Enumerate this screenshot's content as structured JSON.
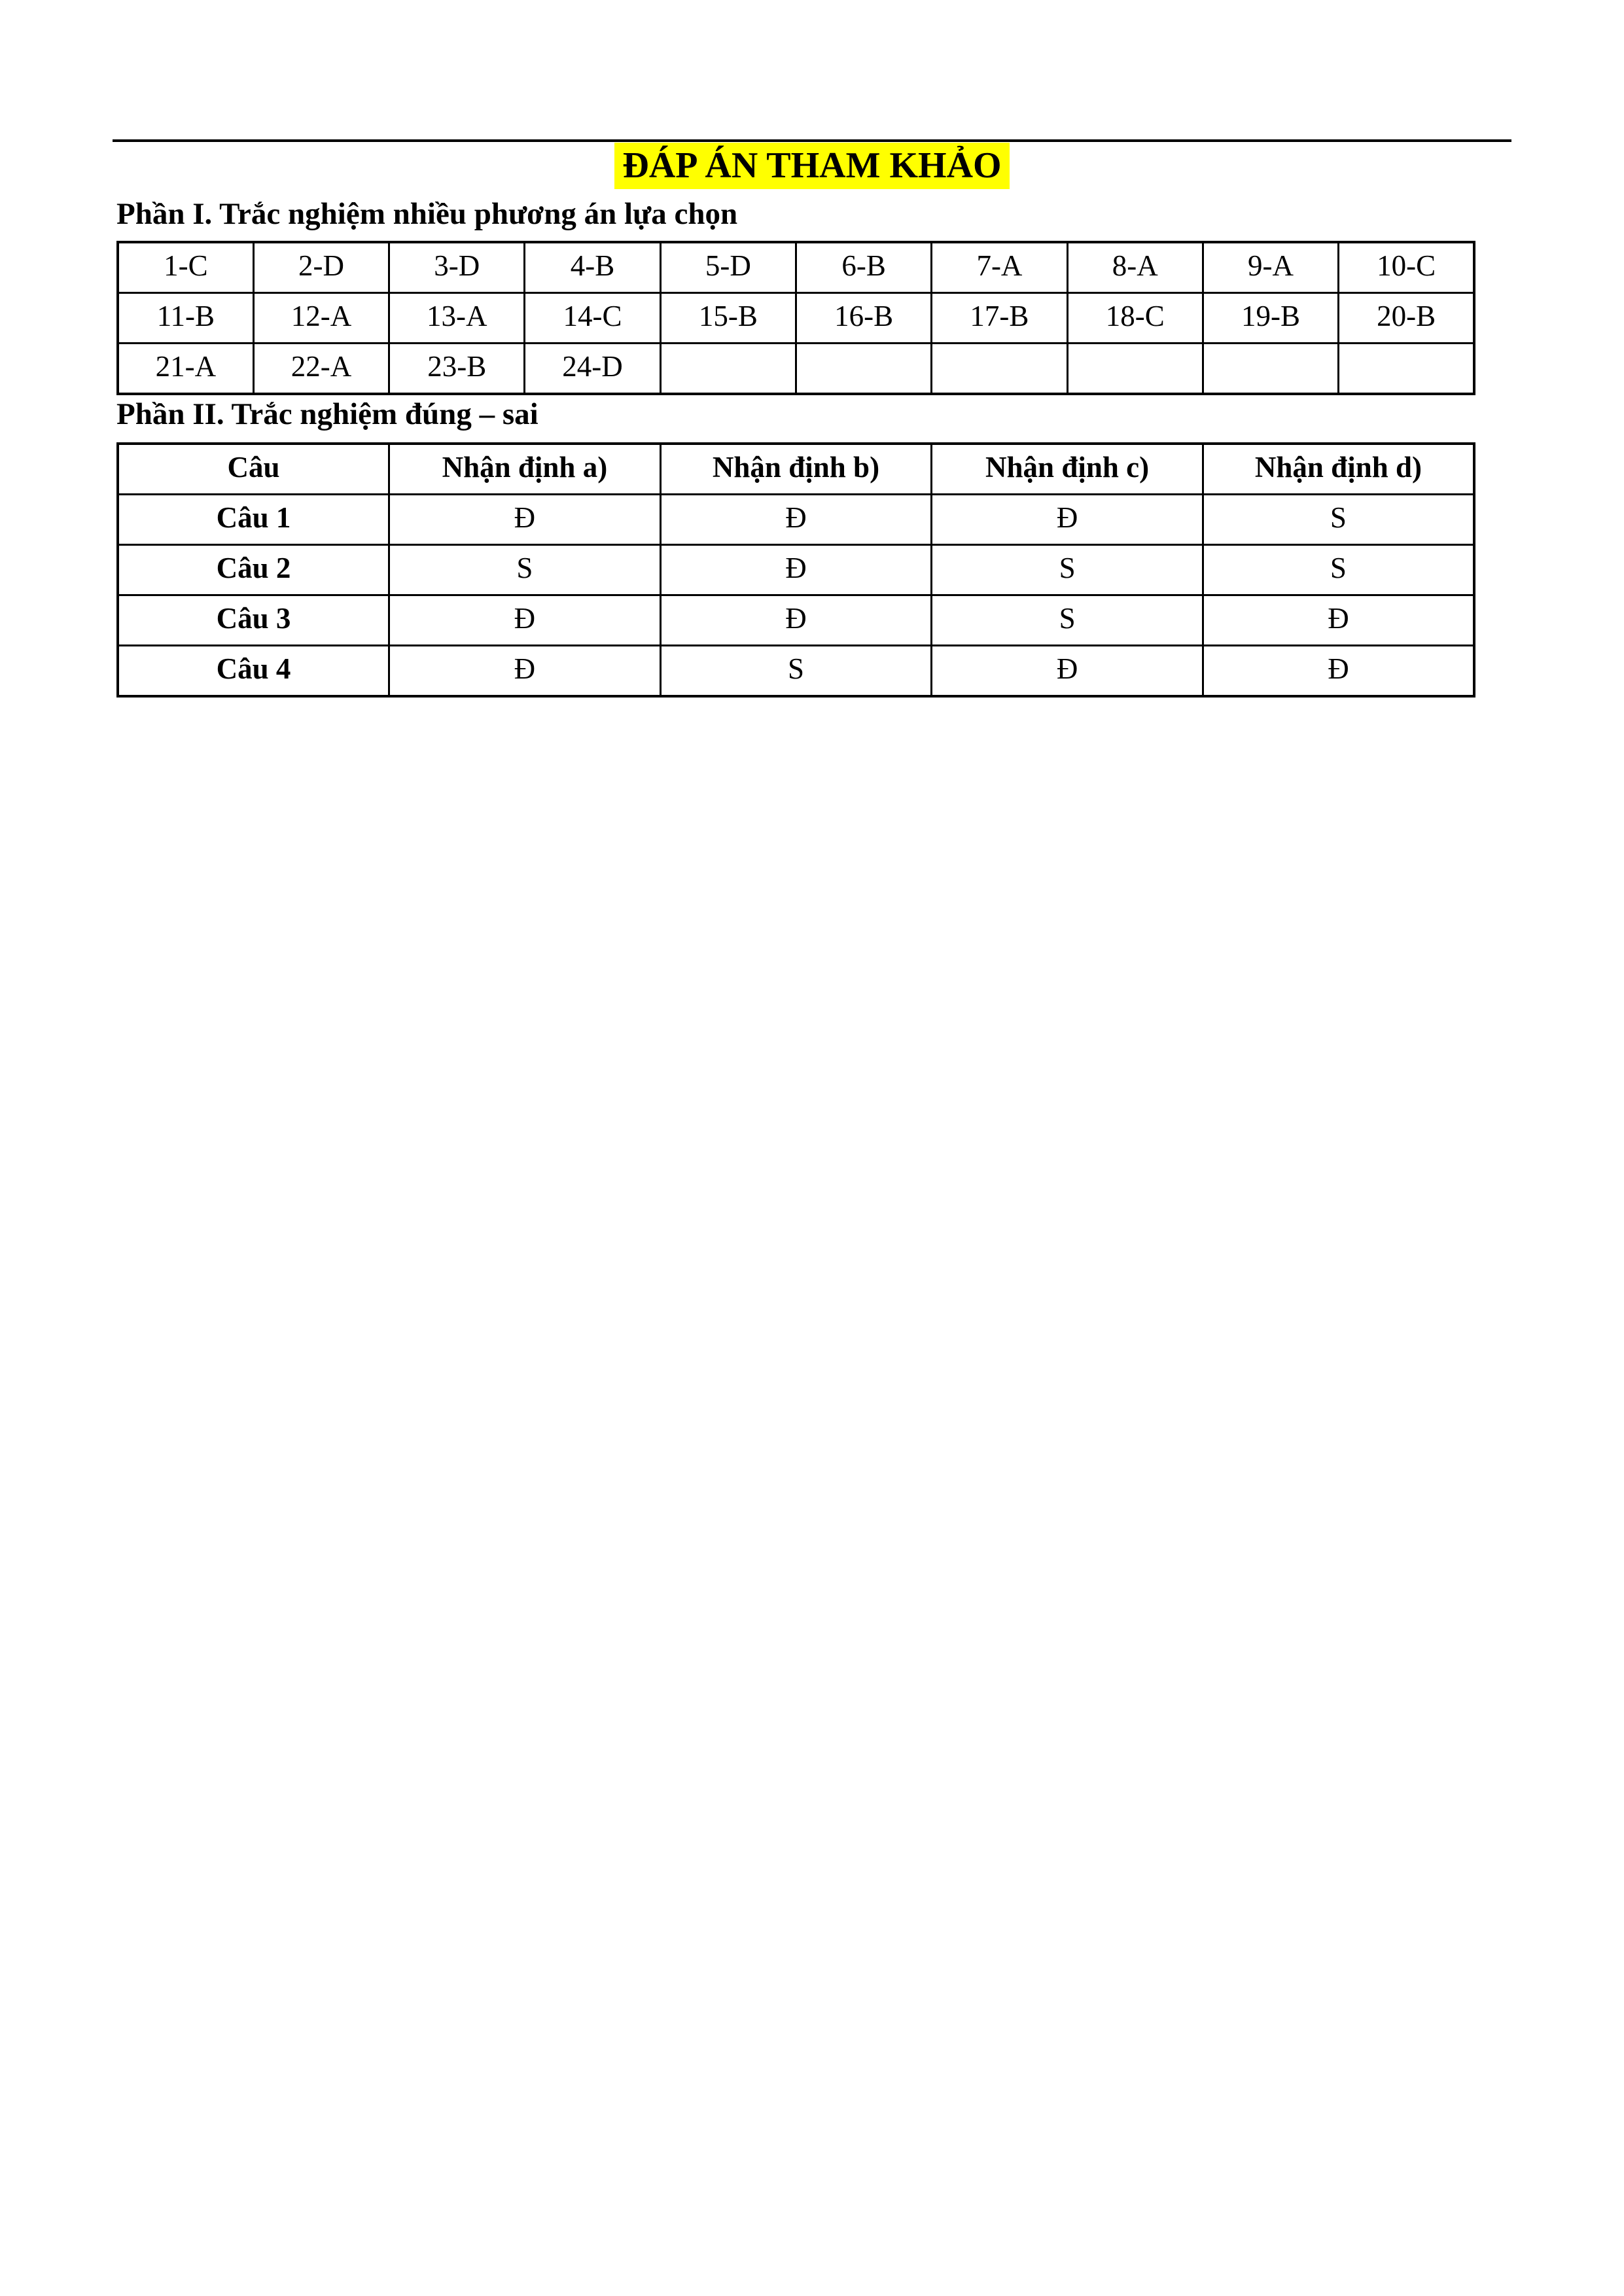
{
  "page": {
    "title": "ĐÁP ÁN THAM KHẢO",
    "title_highlight_color": "#ffff00",
    "text_color": "#000000",
    "background_color": "#ffffff"
  },
  "part1": {
    "heading": "Phần I. Trắc nghiệm nhiều phương án lựa chọn",
    "answers": [
      [
        "1-C",
        "2-D",
        "3-D",
        "4-B",
        "5-D",
        "6-B",
        "7-A",
        "8-A",
        "9-A",
        "10-C"
      ],
      [
        "11-B",
        "12-A",
        "13-A",
        "14-C",
        "15-B",
        "16-B",
        "17-B",
        "18-C",
        "19-B",
        "20-B"
      ],
      [
        "21-A",
        "22-A",
        "23-B",
        "24-D",
        "",
        "",
        "",
        "",
        "",
        ""
      ]
    ]
  },
  "part2": {
    "heading": "Phần II. Trắc nghiệm đúng – sai",
    "columns": [
      "Câu",
      "Nhận định a)",
      "Nhận định b)",
      "Nhận định c)",
      "Nhận định d)"
    ],
    "rows": [
      {
        "label": "Câu 1",
        "values": [
          "Đ",
          "Đ",
          "Đ",
          "S"
        ]
      },
      {
        "label": "Câu 2",
        "values": [
          "S",
          "Đ",
          "S",
          "S"
        ]
      },
      {
        "label": "Câu 3",
        "values": [
          "Đ",
          "Đ",
          "S",
          "Đ"
        ]
      },
      {
        "label": "Câu 4",
        "values": [
          "Đ",
          "S",
          "Đ",
          "Đ"
        ]
      }
    ]
  }
}
